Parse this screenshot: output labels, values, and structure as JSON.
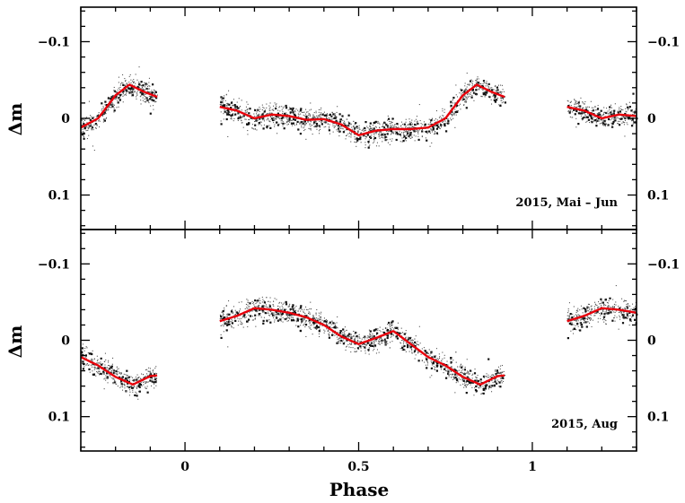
{
  "chart_data": [
    {
      "type": "scatter",
      "panel": "top",
      "label": "2015, Mai – Jun",
      "xlim": [
        -0.3,
        1.3
      ],
      "ylim": [
        0.145,
        -0.145
      ],
      "ylabel": "Δm",
      "x_ticks": [
        0,
        0.5,
        1
      ],
      "y_ticks": [
        -0.1,
        0,
        0.1
      ],
      "y_tick_labels": [
        "−0.1",
        "0",
        "0.1"
      ],
      "phase_coverage": [
        [
          -0.3,
          -0.08
        ],
        [
          0.1,
          0.92
        ],
        [
          1.1,
          1.3
        ]
      ],
      "series": [
        {
          "name": "fit",
          "color": "#e8000b",
          "x": [
            0.1,
            0.15,
            0.2,
            0.25,
            0.3,
            0.35,
            0.4,
            0.45,
            0.5,
            0.55,
            0.6,
            0.65,
            0.7,
            0.75,
            0.8,
            0.84,
            0.88,
            0.92
          ],
          "y": [
            -0.015,
            -0.01,
            0.0,
            -0.005,
            -0.003,
            0.002,
            0.001,
            0.008,
            0.022,
            0.016,
            0.014,
            0.014,
            0.012,
            0.0,
            -0.03,
            -0.044,
            -0.035,
            -0.028
          ]
        }
      ]
    },
    {
      "type": "scatter",
      "panel": "bottom",
      "label": "2015, Aug",
      "xlim": [
        -0.3,
        1.3
      ],
      "ylim": [
        0.145,
        -0.145
      ],
      "ylabel": "Δm",
      "xlabel": "Phase",
      "x_ticks": [
        0,
        0.5,
        1
      ],
      "x_tick_labels": [
        "0",
        "0.5",
        "1"
      ],
      "y_ticks": [
        -0.1,
        0,
        0.1
      ],
      "y_tick_labels": [
        "−0.1",
        "0",
        "0.1"
      ],
      "phase_coverage": [
        [
          -0.3,
          -0.08
        ],
        [
          0.1,
          0.92
        ],
        [
          1.1,
          1.3
        ]
      ],
      "series": [
        {
          "name": "fit",
          "color": "#e8000b",
          "x": [
            0.1,
            0.15,
            0.2,
            0.25,
            0.3,
            0.35,
            0.4,
            0.45,
            0.5,
            0.55,
            0.6,
            0.65,
            0.7,
            0.75,
            0.8,
            0.85,
            0.9,
            0.92
          ],
          "y": [
            -0.025,
            -0.032,
            -0.042,
            -0.04,
            -0.036,
            -0.03,
            -0.02,
            -0.005,
            0.005,
            -0.003,
            -0.012,
            0.005,
            0.022,
            0.033,
            0.048,
            0.058,
            0.047,
            0.046
          ]
        }
      ]
    }
  ]
}
